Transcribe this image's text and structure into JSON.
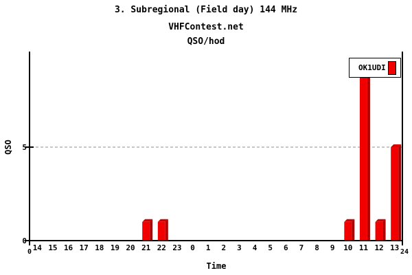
{
  "title": "3. Subregional (Field day) 144 MHz",
  "subtitle": "VHFContest.net",
  "chart_title": "QSO/hod",
  "legend": {
    "label": "OK1UDI"
  },
  "chart_data": {
    "type": "bar",
    "title": "QSO/hod",
    "xlabel": "Time",
    "ylabel": "QSO",
    "categories": [
      "14",
      "15",
      "16",
      "17",
      "18",
      "19",
      "20",
      "21",
      "22",
      "23",
      "0",
      "1",
      "2",
      "3",
      "4",
      "5",
      "6",
      "7",
      "8",
      "9",
      "10",
      "11",
      "12",
      "13"
    ],
    "series": [
      {
        "name": "OK1UDI",
        "color": "#f20000",
        "values": [
          0,
          0,
          0,
          0,
          0,
          0,
          0,
          1,
          1,
          0,
          0,
          0,
          0,
          0,
          0,
          0,
          0,
          0,
          0,
          0,
          1,
          9,
          1,
          5
        ]
      }
    ],
    "ylim": [
      0,
      10
    ],
    "y_ticks": [
      0,
      5
    ],
    "gridlines_y": [
      5
    ],
    "x_axis_end_labels": {
      "start": "0",
      "end": "24"
    },
    "legend_position": "top-right",
    "grid_on": true,
    "style": {
      "bar_front": "#f20000",
      "bar_side": "#ae0000",
      "bar_top": "#d40000",
      "grid_color": "#b3b3b3",
      "axis_color": "#000000",
      "background": "#ffffff"
    }
  }
}
